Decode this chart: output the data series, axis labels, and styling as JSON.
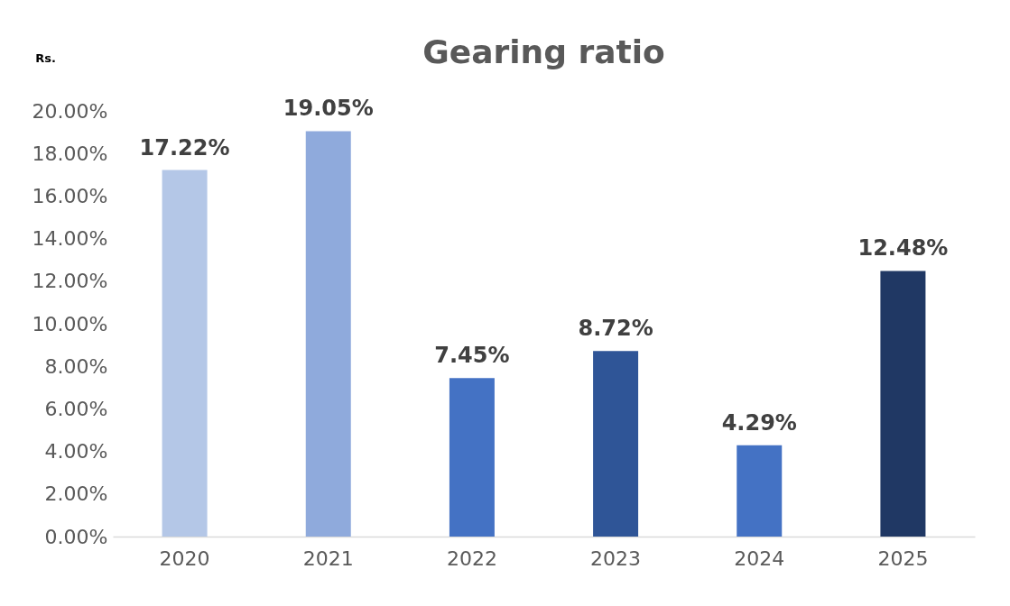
{
  "chart_data": {
    "type": "bar",
    "title": "Gearing ratio",
    "ylabel": "Rs.",
    "categories": [
      "2020",
      "2021",
      "2022",
      "2023",
      "2024",
      "2025"
    ],
    "values": [
      17.22,
      19.05,
      7.45,
      8.72,
      4.29,
      12.48
    ],
    "colors": [
      "#b4c7e7",
      "#8faadc",
      "#4472c4",
      "#2f5597",
      "#4472c4",
      "#203864"
    ],
    "value_labels": [
      "17.22%",
      "19.05%",
      "7.45%",
      "8.72%",
      "4.29%",
      "12.48%"
    ],
    "ylim": [
      0,
      20
    ],
    "yticks": [
      {
        "value": 0,
        "label": "0.00%"
      },
      {
        "value": 2,
        "label": "2.00%"
      },
      {
        "value": 4,
        "label": "4.00%"
      },
      {
        "value": 6,
        "label": "6.00%"
      },
      {
        "value": 8,
        "label": "8.00%"
      },
      {
        "value": 10,
        "label": "10.00%"
      },
      {
        "value": 12,
        "label": "12.00%"
      },
      {
        "value": 14,
        "label": "14.00%"
      },
      {
        "value": 16,
        "label": "16.00%"
      },
      {
        "value": 18,
        "label": "18.00%"
      },
      {
        "value": 20,
        "label": "20.00%"
      }
    ],
    "grid": false,
    "legend": false
  }
}
